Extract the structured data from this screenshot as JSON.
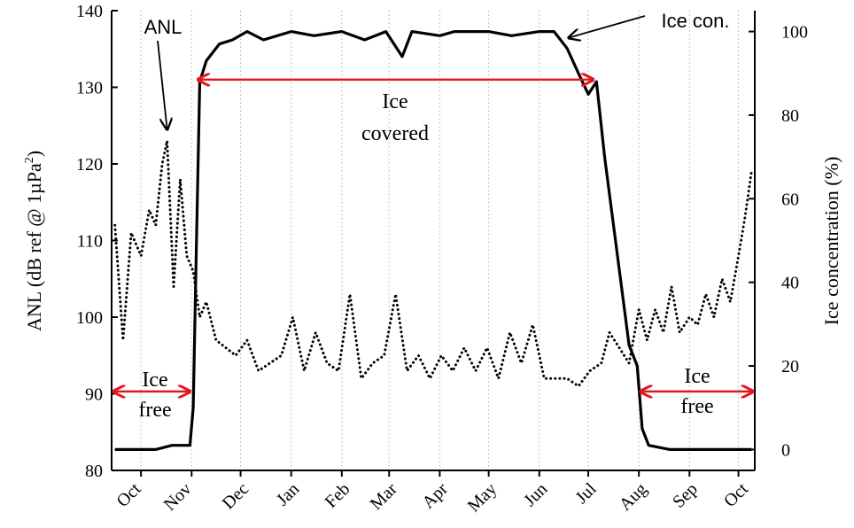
{
  "chart_data": {
    "type": "line",
    "x_axis": {
      "tick_labels": [
        "Oct",
        "Nov",
        "Dec",
        "Jan",
        "Feb",
        "Mar",
        "Apr",
        "May",
        "Jun",
        "Jul",
        "Aug",
        "Sep",
        "Oct"
      ],
      "grid": "vertical dotted month lines"
    },
    "y_left": {
      "label": "ANL (dB ref @ 1µPa²)",
      "label_text": "ANL (dB ref @ 1µPa",
      "label_sup": "2",
      "label_end": ")",
      "ticks": [
        80,
        90,
        100,
        110,
        120,
        130,
        140
      ],
      "range": [
        80,
        140
      ]
    },
    "y_right": {
      "label": "Ice concentration (%)",
      "ticks": [
        0,
        20,
        40,
        60,
        80,
        100
      ],
      "range": [
        -5,
        105
      ]
    },
    "series": [
      {
        "name": "ANL",
        "axis": "left",
        "style": "dotted",
        "points": [
          [
            "2011-09-15",
            112
          ],
          [
            "2011-09-20",
            97
          ],
          [
            "2011-09-25",
            111
          ],
          [
            "2011-10-01",
            108
          ],
          [
            "2011-10-06",
            114
          ],
          [
            "2011-10-10",
            112
          ],
          [
            "2011-10-14",
            120
          ],
          [
            "2011-10-17",
            123
          ],
          [
            "2011-10-21",
            104
          ],
          [
            "2011-10-25",
            118
          ],
          [
            "2011-10-29",
            108
          ],
          [
            "2011-11-02",
            106
          ],
          [
            "2011-11-06",
            100
          ],
          [
            "2011-11-10",
            102
          ],
          [
            "2011-11-16",
            97
          ],
          [
            "2011-11-22",
            96
          ],
          [
            "2011-11-28",
            95
          ],
          [
            "2011-12-05",
            97
          ],
          [
            "2011-12-12",
            93
          ],
          [
            "2011-12-19",
            94
          ],
          [
            "2011-12-26",
            95
          ],
          [
            "2012-01-02",
            100
          ],
          [
            "2012-01-09",
            93
          ],
          [
            "2012-01-16",
            98
          ],
          [
            "2012-01-23",
            94
          ],
          [
            "2012-01-30",
            93
          ],
          [
            "2012-02-06",
            103
          ],
          [
            "2012-02-13",
            92
          ],
          [
            "2012-02-20",
            94
          ],
          [
            "2012-02-27",
            95
          ],
          [
            "2012-03-05",
            103
          ],
          [
            "2012-03-12",
            93
          ],
          [
            "2012-03-19",
            95
          ],
          [
            "2012-03-26",
            92
          ],
          [
            "2012-04-02",
            95
          ],
          [
            "2012-04-09",
            93
          ],
          [
            "2012-04-16",
            96
          ],
          [
            "2012-04-23",
            93
          ],
          [
            "2012-04-30",
            96
          ],
          [
            "2012-05-07",
            92
          ],
          [
            "2012-05-14",
            98
          ],
          [
            "2012-05-21",
            94
          ],
          [
            "2012-05-28",
            99
          ],
          [
            "2012-06-04",
            92
          ],
          [
            "2012-06-11",
            92
          ],
          [
            "2012-06-18",
            92
          ],
          [
            "2012-06-25",
            91
          ],
          [
            "2012-07-02",
            93
          ],
          [
            "2012-07-09",
            94
          ],
          [
            "2012-07-14",
            98
          ],
          [
            "2012-07-20",
            96
          ],
          [
            "2012-07-26",
            94
          ],
          [
            "2012-08-01",
            101
          ],
          [
            "2012-08-06",
            97
          ],
          [
            "2012-08-11",
            101
          ],
          [
            "2012-08-16",
            98
          ],
          [
            "2012-08-21",
            104
          ],
          [
            "2012-08-26",
            98
          ],
          [
            "2012-09-01",
            100
          ],
          [
            "2012-09-06",
            99
          ],
          [
            "2012-09-11",
            103
          ],
          [
            "2012-09-16",
            100
          ],
          [
            "2012-09-21",
            105
          ],
          [
            "2012-09-26",
            102
          ],
          [
            "2012-10-01",
            108
          ],
          [
            "2012-10-05",
            113
          ],
          [
            "2012-10-09",
            119
          ]
        ]
      },
      {
        "name": "Ice con.",
        "axis": "right",
        "style": "solid",
        "points": [
          [
            "2011-09-15",
            0
          ],
          [
            "2011-10-10",
            0
          ],
          [
            "2011-10-20",
            1
          ],
          [
            "2011-10-31",
            1
          ],
          [
            "2011-11-02",
            10
          ],
          [
            "2011-11-04",
            50
          ],
          [
            "2011-11-06",
            88
          ],
          [
            "2011-11-10",
            93
          ],
          [
            "2011-11-18",
            97
          ],
          [
            "2011-11-26",
            98
          ],
          [
            "2011-12-05",
            100
          ],
          [
            "2011-12-15",
            98
          ],
          [
            "2012-01-01",
            100
          ],
          [
            "2012-01-15",
            99
          ],
          [
            "2012-02-01",
            100
          ],
          [
            "2012-02-15",
            98
          ],
          [
            "2012-02-28",
            100
          ],
          [
            "2012-03-09",
            94
          ],
          [
            "2012-03-15",
            100
          ],
          [
            "2012-04-01",
            99
          ],
          [
            "2012-04-10",
            100
          ],
          [
            "2012-05-01",
            100
          ],
          [
            "2012-05-15",
            99
          ],
          [
            "2012-06-01",
            100
          ],
          [
            "2012-06-10",
            100
          ],
          [
            "2012-06-18",
            96
          ],
          [
            "2012-06-25",
            90
          ],
          [
            "2012-07-01",
            85
          ],
          [
            "2012-07-06",
            88
          ],
          [
            "2012-07-11",
            70
          ],
          [
            "2012-07-16",
            55
          ],
          [
            "2012-07-21",
            40
          ],
          [
            "2012-07-26",
            25
          ],
          [
            "2012-07-31",
            20
          ],
          [
            "2012-08-03",
            5
          ],
          [
            "2012-08-07",
            1
          ],
          [
            "2012-08-20",
            0
          ],
          [
            "2012-09-15",
            0
          ],
          [
            "2012-10-09",
            0
          ]
        ]
      }
    ],
    "annotations": [
      {
        "id": "anl",
        "text": "ANL"
      },
      {
        "id": "icecon",
        "text": "Ice con."
      },
      {
        "id": "icecovered",
        "lines": [
          "Ice",
          "covered"
        ]
      },
      {
        "id": "icefree1",
        "lines": [
          "Ice",
          "free"
        ]
      },
      {
        "id": "icefree2",
        "lines": [
          "Ice",
          "free"
        ]
      }
    ],
    "arrow_color": "#e0191f",
    "line_color": "#000000",
    "grid_color": "#b0b0b0"
  }
}
